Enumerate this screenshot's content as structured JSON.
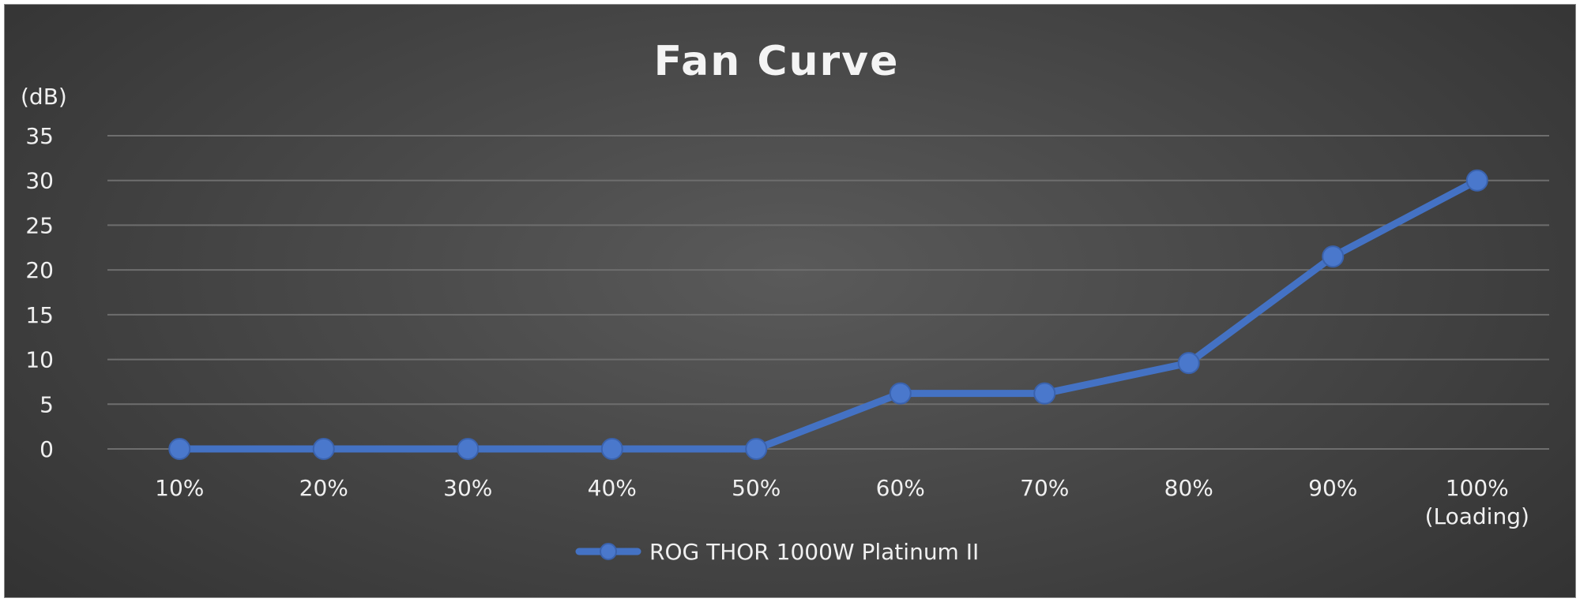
{
  "chart_data": {
    "type": "line",
    "title": "Fan Curve",
    "ylabel": "(dB)",
    "xlabel": "",
    "categories": [
      "10%",
      "20%",
      "30%",
      "40%",
      "50%",
      "60%",
      "70%",
      "80%",
      "90%",
      "100%\n(Loading)"
    ],
    "series": [
      {
        "name": "ROG THOR 1000W Platinum II",
        "values": [
          0,
          0,
          0,
          0,
          0,
          6.2,
          6.2,
          9.6,
          21.5,
          30
        ]
      }
    ],
    "ylim": [
      0,
      35
    ],
    "yticks": [
      0,
      5,
      10,
      15,
      20,
      25,
      30,
      35
    ],
    "grid": true,
    "legend_position": "bottom",
    "colors": {
      "series": "#4472c4",
      "point": "#4a78cc",
      "background": "#444444"
    }
  }
}
